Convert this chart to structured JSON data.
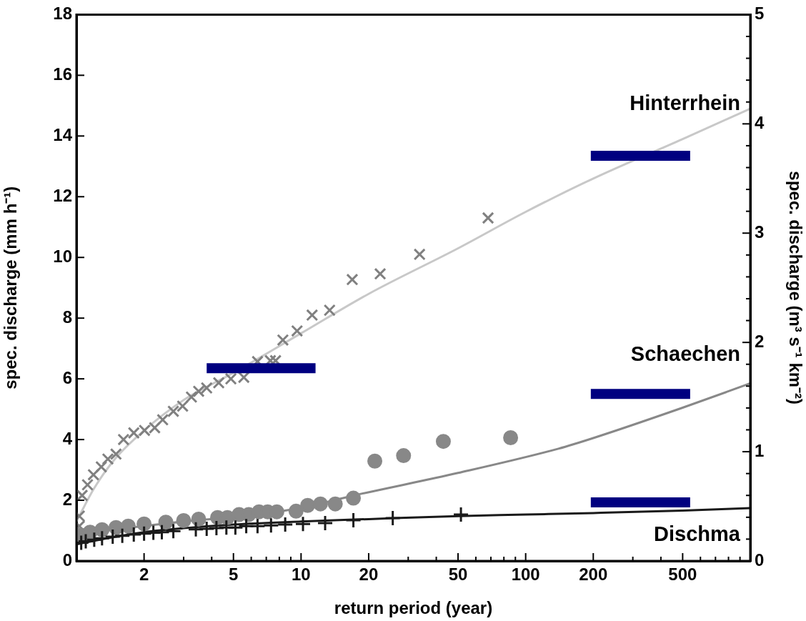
{
  "chart_data": {
    "type": "scatter",
    "xlabel": "return period (year)",
    "ylabel": "spec. discharge (mm h⁻¹)",
    "y2label": "spec. discharge (m³ s⁻¹ km⁻²)",
    "log": "x",
    "grid": false,
    "legend": false,
    "xlim": [
      1,
      1000
    ],
    "xticks": [
      2,
      {
        "value": 3,
        "label": null
      },
      {
        "value": 4,
        "label": null
      },
      5,
      {
        "value": 6,
        "label": null
      },
      {
        "value": 7,
        "label": null
      },
      {
        "value": 8,
        "label": null
      },
      {
        "value": 9,
        "label": null
      },
      10,
      20,
      {
        "value": 30,
        "label": null
      },
      {
        "value": 40,
        "label": null
      },
      50,
      {
        "value": 60,
        "label": null
      },
      {
        "value": 70,
        "label": null
      },
      {
        "value": 80,
        "label": null
      },
      {
        "value": 90,
        "label": null
      },
      100,
      200,
      {
        "value": 300,
        "label": null
      },
      {
        "value": 400,
        "label": null
      },
      500,
      {
        "value": 600,
        "label": null
      },
      {
        "value": 700,
        "label": null
      },
      {
        "value": 800,
        "label": null
      },
      {
        "value": 900,
        "label": null
      }
    ],
    "ylim": [
      0,
      18
    ],
    "yticks": [
      0,
      2,
      4,
      6,
      8,
      10,
      12,
      14,
      16,
      18
    ],
    "y2lim": [
      0,
      5
    ],
    "y2ticks": [
      0,
      {
        "value": 0.2,
        "label": null
      },
      {
        "value": 0.4,
        "label": null
      },
      {
        "value": 0.6,
        "label": null
      },
      {
        "value": 0.8,
        "label": null
      },
      1,
      {
        "value": 1.2,
        "label": null
      },
      {
        "value": 1.4,
        "label": null
      },
      {
        "value": 1.6,
        "label": null
      },
      {
        "value": 1.8,
        "label": null
      },
      2,
      {
        "value": 2.2,
        "label": null
      },
      {
        "value": 2.4,
        "label": null
      },
      {
        "value": 2.6,
        "label": null
      },
      {
        "value": 2.8,
        "label": null
      },
      3,
      {
        "value": 3.2,
        "label": null
      },
      {
        "value": 3.4,
        "label": null
      },
      {
        "value": 3.6,
        "label": null
      },
      {
        "value": 3.8,
        "label": null
      },
      4,
      {
        "value": 4.2,
        "label": null
      },
      {
        "value": 4.4,
        "label": null
      },
      {
        "value": 4.6,
        "label": null
      },
      {
        "value": 4.8,
        "label": null
      },
      5
    ],
    "series": [
      {
        "type": "line",
        "marker": "none",
        "name": "Hinterrhein",
        "color": "#c8c8c8",
        "x": [
          1,
          1.2,
          1.5,
          2,
          3,
          5,
          10,
          20,
          50,
          100,
          200,
          500,
          1000
        ],
        "values": [
          1.3,
          2.4,
          3.4,
          4.3,
          5.3,
          6.2,
          7.5,
          8.8,
          10.3,
          11.5,
          12.6,
          13.9,
          14.9
        ]
      },
      {
        "type": "line",
        "marker": "none",
        "name": "Schaechen",
        "color": "#888888",
        "x": [
          1,
          1.5,
          2,
          3,
          5,
          10,
          17,
          50,
          140,
          200,
          500,
          1000
        ],
        "values": [
          0.85,
          1.05,
          1.15,
          1.3,
          1.45,
          1.75,
          2.15,
          2.9,
          3.7,
          4.05,
          5.05,
          5.85
        ]
      },
      {
        "type": "line",
        "marker": "none",
        "name": "Dischma",
        "color": "#1a1a1a",
        "x": [
          1,
          1.5,
          2,
          3,
          5,
          10,
          20,
          50,
          100,
          200,
          500,
          1000
        ],
        "values": [
          0.55,
          0.8,
          0.95,
          1.08,
          1.2,
          1.3,
          1.38,
          1.48,
          1.53,
          1.58,
          1.66,
          1.74
        ]
      },
      {
        "marker": "x",
        "color": "#808080",
        "x": [
          1.03,
          1.03,
          1.06,
          1.12,
          1.19,
          1.29,
          1.38,
          1.5,
          1.62,
          1.8,
          2.01,
          2.23,
          2.42,
          2.7,
          2.97,
          3.25,
          3.5,
          3.8,
          4.3,
          4.87,
          5.56,
          6.4,
          7.3,
          7.7,
          8.3,
          9.6,
          11.2,
          13.4,
          16.9,
          22.5,
          33.7,
          68
        ],
        "values": [
          1.15,
          1.48,
          2.16,
          2.51,
          2.84,
          3.1,
          3.36,
          3.52,
          4.0,
          4.22,
          4.3,
          4.39,
          4.65,
          4.93,
          5.1,
          5.4,
          5.59,
          5.7,
          5.87,
          6.0,
          6.05,
          6.57,
          6.6,
          6.6,
          7.28,
          7.58,
          8.1,
          8.26,
          9.27,
          9.46,
          10.1,
          11.3
        ]
      },
      {
        "marker": "circle",
        "color": "#888888",
        "x": [
          1.05,
          1.15,
          1.3,
          1.5,
          1.7,
          2,
          2.5,
          3,
          3.5,
          4.25,
          4.7,
          5.3,
          5.85,
          6.5,
          7.1,
          7.8,
          9.5,
          10.7,
          12.2,
          14.2,
          17.1,
          21.3,
          28.6,
          43,
          85.7
        ],
        "values": [
          0.85,
          0.95,
          1.03,
          1.1,
          1.15,
          1.22,
          1.28,
          1.33,
          1.38,
          1.43,
          1.43,
          1.53,
          1.53,
          1.62,
          1.62,
          1.62,
          1.64,
          1.83,
          1.88,
          1.88,
          2.07,
          3.29,
          3.47,
          3.94,
          4.06
        ]
      },
      {
        "marker": "cross",
        "color": "#1a1a1a",
        "x": [
          1.05,
          1.1,
          1.2,
          1.3,
          1.45,
          1.6,
          1.8,
          2.0,
          2.2,
          2.4,
          2.7,
          3.4,
          3.8,
          4.2,
          4.65,
          5.1,
          5.7,
          6.4,
          7.35,
          8.5,
          10.2,
          12.8,
          17.1,
          25.6,
          51.5
        ],
        "values": [
          0.6,
          0.65,
          0.7,
          0.75,
          0.8,
          0.83,
          0.87,
          0.9,
          0.93,
          0.95,
          0.98,
          1.04,
          1.06,
          1.08,
          1.1,
          1.1,
          1.15,
          1.15,
          1.17,
          1.2,
          1.22,
          1.25,
          1.34,
          1.41,
          1.53
        ]
      },
      {
        "type": "line",
        "marker": "none",
        "color": "#000080",
        "x": [
          3.8,
          11.6
        ],
        "values": [
          6.35,
          6.35
        ]
      },
      {
        "type": "line",
        "marker": "none",
        "color": "#000080",
        "x": [
          195,
          540
        ],
        "values": [
          13.35,
          13.35
        ]
      },
      {
        "type": "line",
        "marker": "none",
        "color": "#000080",
        "x": [
          195,
          540
        ],
        "values": [
          5.5,
          5.5
        ]
      },
      {
        "type": "line",
        "marker": "none",
        "color": "#000080",
        "x": [
          195,
          540
        ],
        "values": [
          1.93,
          1.93
        ]
      }
    ]
  }
}
